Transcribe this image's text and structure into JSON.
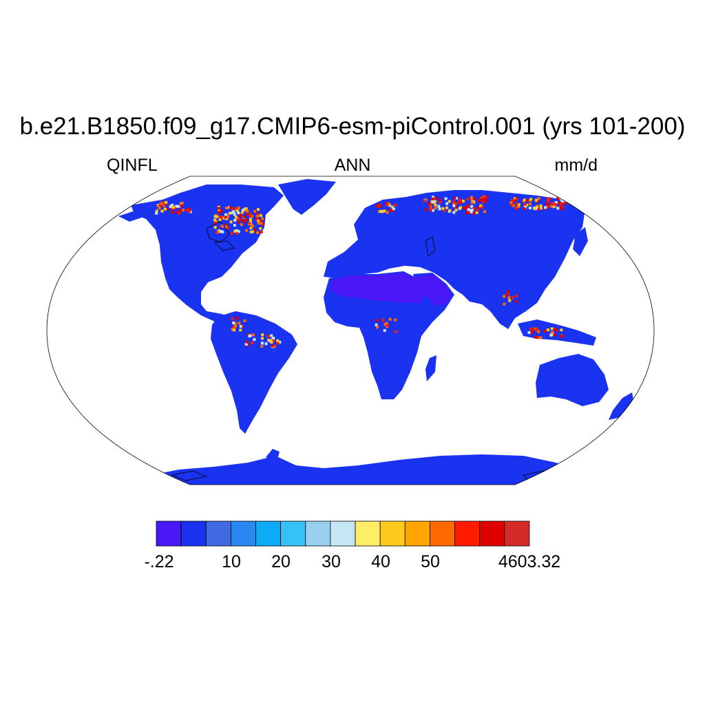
{
  "title": "b.e21.B1850.f09_g17.CMIP6-esm-piControl.001 (yrs 101-200)",
  "left_string": "QINFL",
  "center_string": "ANN",
  "right_string": "mm/d",
  "colorbar": {
    "colors": [
      "#4a17f6",
      "#1a33f0",
      "#4169e1",
      "#2a86f3",
      "#0daaf5",
      "#36c2f5",
      "#99cfee",
      "#c6e6f6",
      "#ffed66",
      "#ffc81c",
      "#ffa500",
      "#ff6a00",
      "#ff1a00",
      "#e00000",
      "#d62a2a"
    ],
    "tick_labels": [
      "-.22",
      "10",
      "20",
      "30",
      "40",
      "50",
      "4603.32"
    ]
  },
  "map": {
    "projection": "Robinson",
    "land_color": "#1a33f0",
    "desert_color": "#4a17f6",
    "hotspot_colors": [
      "#e00000",
      "#ff6a00",
      "#ffc81c",
      "#c6e6f6",
      "#ff1a00"
    ]
  }
}
